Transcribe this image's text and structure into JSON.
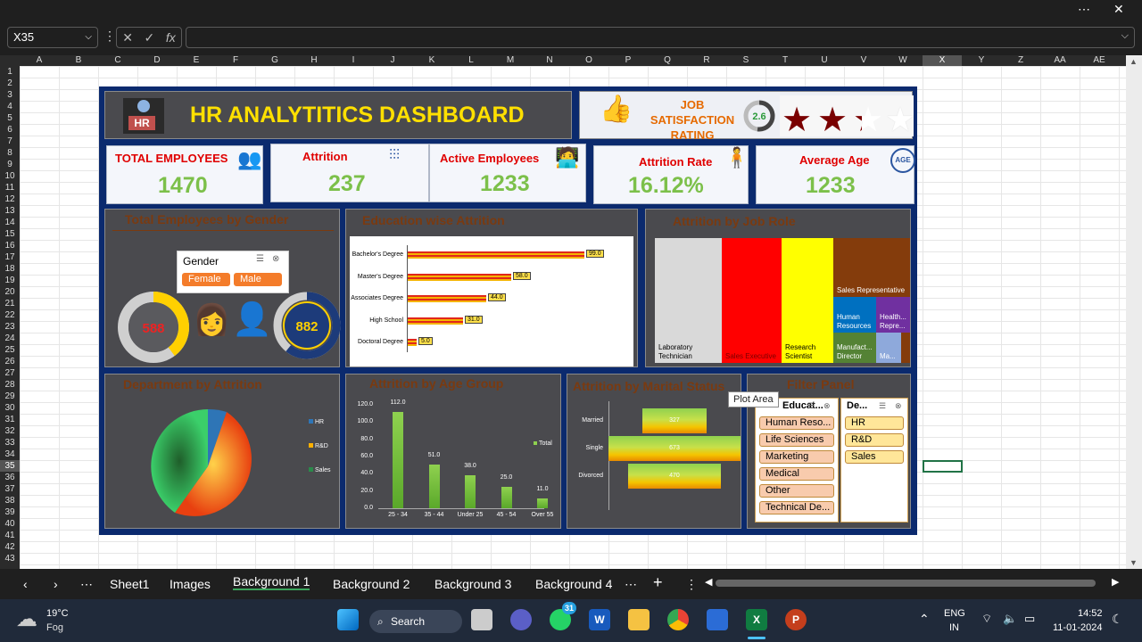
{
  "window": {
    "more_icon": "⋯",
    "close_icon": "✕"
  },
  "formula_bar": {
    "name_box": "X35",
    "fx": "fx",
    "cancel": "✕",
    "confirm": "✓",
    "value": ""
  },
  "columns": [
    "A",
    "B",
    "C",
    "D",
    "E",
    "F",
    "G",
    "H",
    "I",
    "J",
    "K",
    "L",
    "M",
    "N",
    "O",
    "P",
    "Q",
    "R",
    "S",
    "T",
    "U",
    "V",
    "W",
    "X",
    "Y",
    "Z",
    "AA",
    "AE"
  ],
  "selected_column": "X",
  "selected_row": 35,
  "rows": [
    "1",
    "2",
    "3",
    "4",
    "5",
    "6",
    "7",
    "8",
    "9",
    "10",
    "11",
    "12",
    "13",
    "14",
    "15",
    "16",
    "17",
    "18",
    "19",
    "20",
    "21",
    "22",
    "23",
    "24",
    "25",
    "26",
    "27",
    "28",
    "29",
    "30",
    "31",
    "32",
    "33",
    "34",
    "35",
    "36",
    "37",
    "38",
    "39",
    "40",
    "41",
    "42",
    "43"
  ],
  "dashboard": {
    "title": "HR ANALYTITICS DASHBOARD",
    "hr_logo": "HR",
    "job_satisfaction": {
      "label_line1": "JOB",
      "label_line2": "SATISFACTION",
      "label_line3": "RATING",
      "rating": "2.6",
      "rating_value": 2.6,
      "max": 5
    },
    "kpis": [
      {
        "label": "TOTAL EMPLOYEES",
        "value": "1470",
        "icon": "group-icon"
      },
      {
        "label": "Attrition",
        "value": "237",
        "icon": "people-leaving-icon"
      },
      {
        "label": "Active Employees",
        "value": "1233",
        "icon": "desk-worker-icon"
      },
      {
        "label": "Attrition Rate",
        "value": "16.12%",
        "icon": "person-arrows-icon"
      },
      {
        "label": "Average Age",
        "value": "1233",
        "icon": "age-icon",
        "icon_text": "AGE"
      }
    ],
    "gender_panel": {
      "title": "Total Employees by Gender",
      "slicer_title": "Gender",
      "options": [
        "Female",
        "Male"
      ],
      "female_value": "588",
      "male_value": "882"
    },
    "education_panel": {
      "title": "Education wise Attrition",
      "chart_data": {
        "type": "bar",
        "orientation": "horizontal",
        "categories": [
          "Bachelor's Degree",
          "Master's Degree",
          "Associates Degree",
          "High School",
          "Doctoral Degree"
        ],
        "values": [
          99.0,
          58.0,
          44.0,
          31.0,
          5.0
        ],
        "labels": [
          "99.0",
          "58.0",
          "44.0",
          "31.0",
          "5.0"
        ]
      }
    },
    "jobrole_panel": {
      "title": "Attrition by Job Role",
      "chart_data": {
        "type": "treemap",
        "items": [
          {
            "label": "Laboratory Technician",
            "color": "#d9d9d9"
          },
          {
            "label": "Sales Executive",
            "color": "#ff0000"
          },
          {
            "label": "Research Scientist",
            "color": "#ffff00"
          },
          {
            "label": "Sales Representative",
            "color": "#843c0c"
          },
          {
            "label": "Human Resources",
            "color": "#0070c0"
          },
          {
            "label": "Health... Repre...",
            "color": "#7030a0"
          },
          {
            "label": "Manufact... Director",
            "color": "#548235"
          },
          {
            "label": "Ma...",
            "color": "#8ea9db"
          }
        ]
      }
    },
    "department_panel": {
      "title": "Department by Attrition",
      "chart_data": {
        "type": "pie",
        "legend": [
          "HR",
          "R&D",
          "Sales"
        ],
        "colors": [
          "#2e75b6",
          "#ffb000",
          "#2a8a4a"
        ]
      }
    },
    "age_panel": {
      "title": "Attrition by Age Group",
      "chart_data": {
        "type": "bar",
        "categories": [
          "25 - 34",
          "35 - 44",
          "Under 25",
          "45 - 54",
          "Over 55"
        ],
        "values": [
          112.0,
          51.0,
          38.0,
          25.0,
          11.0
        ],
        "labels": [
          "112.0",
          "51.0",
          "38.0",
          "25.0",
          "11.0"
        ],
        "y_ticks": [
          "0.0",
          "20.0",
          "40.0",
          "60.0",
          "80.0",
          "100.0",
          "120.0"
        ],
        "ylim": [
          0,
          120
        ],
        "legend": "Total"
      }
    },
    "marital_panel": {
      "title": "Attrition by Marital Status",
      "chart_data": {
        "type": "bar",
        "orientation": "horizontal-centered",
        "categories": [
          "Married",
          "Single",
          "Divorced"
        ],
        "values": [
          327,
          673,
          470
        ],
        "labels": [
          "327",
          "673",
          "470"
        ]
      }
    },
    "filter_panel": {
      "title": "Filter Panel",
      "slicer1_title": "Educat...",
      "slicer1_items": [
        "Human Reso...",
        "Life Sciences",
        "Marketing",
        "Medical",
        "Other",
        "Technical De..."
      ],
      "slicer2_title": "De...",
      "slicer2_items": [
        "HR",
        "R&D",
        "Sales"
      ]
    },
    "tooltip": "Plot Area"
  },
  "sheet_tabs": [
    "Sheet1",
    "Images",
    "Background 1",
    "Background 2",
    "Background 3",
    "Background 4"
  ],
  "active_tab": "Background 1",
  "taskbar": {
    "weather_temp": "19°C",
    "weather_desc": "Fog",
    "search": "Search",
    "whatsapp_badge": "31",
    "lang1": "ENG",
    "lang2": "IN",
    "time": "14:52",
    "date": "11-01-2024"
  }
}
